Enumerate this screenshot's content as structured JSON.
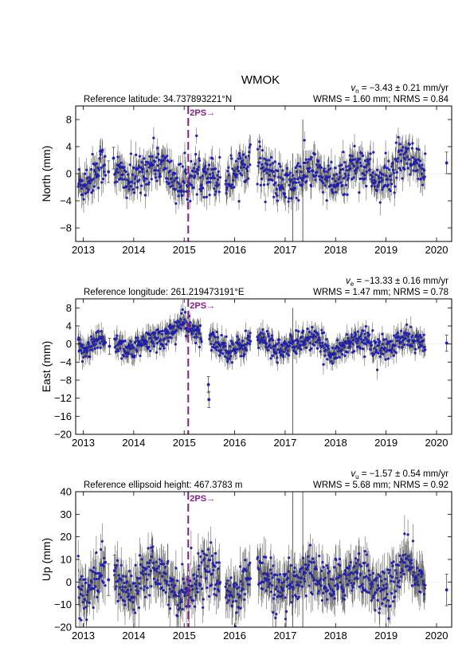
{
  "figure": {
    "title": "WMOK",
    "colors": {
      "marker": "#1f1fd6",
      "errorbar": "#4a4a4a",
      "event": "#8b1a8b",
      "frame": "#000000",
      "grid": "#cfcfcf"
    }
  },
  "chart_data": [
    {
      "type": "scatter",
      "component": "north",
      "ylabel": "North (mm)",
      "ref_label": "Reference latitude: 34.737893221°N",
      "velocity": {
        "symbol": "v",
        "sub": "n",
        "text": " = −3.43 ± 0.21 mm/yr"
      },
      "stats": "WRMS = 1.60 mm; NRMS = 0.84",
      "xlim": [
        2012.85,
        2020.3
      ],
      "ylim": [
        -10,
        10
      ],
      "yticks": [
        8,
        4,
        0,
        -4,
        -8
      ],
      "xticks": [
        2013,
        2014,
        2015,
        2016,
        2017,
        2018,
        2019,
        2020
      ],
      "event": {
        "x": 2015.08,
        "label": "2PS→"
      },
      "data_segments": [
        [
          2012.9,
          2013.45
        ],
        [
          2013.62,
          2015.72
        ],
        [
          2015.82,
          2016.32
        ],
        [
          2016.45,
          2019.78
        ]
      ],
      "isolated_points": [
        [
          2013.5,
          0.3
        ],
        [
          2013.6,
          2.3
        ],
        [
          2020.2,
          1.6
        ]
      ],
      "outlier_bars": [
        [
          2017.15,
          -12,
          3
        ],
        [
          2017.35,
          -12,
          8
        ]
      ],
      "scatter_amp": 1.5,
      "err": 1.6,
      "seasonal": 1.5,
      "trend_bumps": [
        [
          2014.0,
          0.5
        ],
        [
          2015.5,
          -1.5
        ],
        [
          2016.1,
          2.0
        ],
        [
          2017.3,
          -1.5
        ],
        [
          2019.2,
          1.0
        ]
      ]
    },
    {
      "type": "scatter",
      "component": "east",
      "ylabel": "East (mm)",
      "ref_label": "Reference longitude: 261.219473191°E",
      "velocity": {
        "symbol": "v",
        "sub": "e",
        "text": " = −13.33 ± 0.16 mm/yr"
      },
      "stats": "WRMS = 1.47 mm; NRMS = 0.78",
      "xlim": [
        2012.85,
        2020.3
      ],
      "ylim": [
        -20,
        10
      ],
      "yticks": [
        8,
        4,
        0,
        -4,
        -8,
        -12,
        -16,
        -20
      ],
      "xticks": [
        2013,
        2014,
        2015,
        2016,
        2017,
        2018,
        2019,
        2020
      ],
      "event": {
        "x": 2015.08,
        "label": "2PS→"
      },
      "data_segments": [
        [
          2012.9,
          2013.45
        ],
        [
          2013.62,
          2015.35
        ],
        [
          2015.5,
          2016.32
        ],
        [
          2016.45,
          2019.78
        ]
      ],
      "isolated_points": [
        [
          2013.52,
          -0.5
        ],
        [
          2015.48,
          -9.0
        ],
        [
          2015.49,
          -12.3
        ],
        [
          2020.2,
          0.2
        ]
      ],
      "outlier_bars": [
        [
          2017.15,
          -20,
          8
        ]
      ],
      "scatter_amp": 1.3,
      "err": 1.8,
      "seasonal": 1.2,
      "trend_bumps": [
        [
          2014.9,
          2.5
        ],
        [
          2015.0,
          3.5
        ],
        [
          2018.0,
          -0.5
        ]
      ]
    },
    {
      "type": "scatter",
      "component": "up",
      "ylabel": "Up (mm)",
      "ref_label": "Reference ellipsoid height: 467.3783 m",
      "velocity": {
        "symbol": "v",
        "sub": "u",
        "text": " = −1.57 ± 0.54 mm/yr"
      },
      "stats": "WRMS = 5.68 mm; NRMS = 0.92",
      "xlim": [
        2012.85,
        2020.3
      ],
      "ylim": [
        -20,
        40
      ],
      "yticks": [
        40,
        30,
        20,
        10,
        0,
        -10,
        -20
      ],
      "xticks": [
        2013,
        2014,
        2015,
        2016,
        2017,
        2018,
        2019,
        2020
      ],
      "event": {
        "x": 2015.08,
        "label": "2PS→"
      },
      "data_segments": [
        [
          2012.9,
          2013.45
        ],
        [
          2013.62,
          2015.72
        ],
        [
          2015.82,
          2016.32
        ],
        [
          2016.45,
          2019.78
        ]
      ],
      "isolated_points": [
        [
          2013.5,
          1.0
        ],
        [
          2013.62,
          5.0
        ],
        [
          2020.2,
          -3.5
        ]
      ],
      "outlier_bars": [
        [
          2017.15,
          -22,
          40
        ],
        [
          2017.35,
          -22,
          40
        ]
      ],
      "scatter_amp": 5.0,
      "err": 7.0,
      "seasonal": 5.0,
      "trend_bumps": [
        [
          2014.2,
          5.0
        ],
        [
          2018.0,
          4.0
        ],
        [
          2019.3,
          3.0
        ]
      ]
    }
  ]
}
